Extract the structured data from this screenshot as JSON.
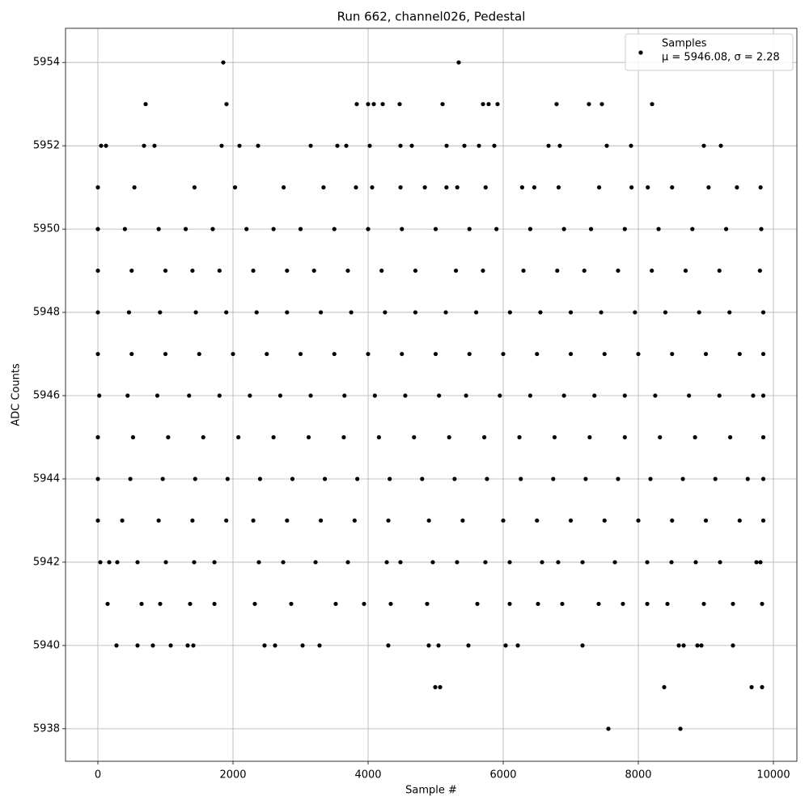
{
  "chart_data": {
    "type": "scatter",
    "title": "Run 662, channel026, Pedestal",
    "xlabel": "Sample #",
    "ylabel": "ADC Counts",
    "xlim": [
      -479,
      10347
    ],
    "ylim": [
      5937.22,
      5954.82
    ],
    "xticks": [
      0,
      2000,
      4000,
      6000,
      8000,
      10000
    ],
    "yticks": [
      5938,
      5940,
      5942,
      5944,
      5946,
      5948,
      5950,
      5952,
      5954
    ],
    "grid": true,
    "legend_position": "upper right",
    "legend_stats": "μ = 5946.08, σ = 2.28",
    "series": [
      {
        "name": "Samples",
        "color": "#000000",
        "x": [
          1856,
          5341,
          707,
          1904,
          3832,
          4000,
          4084,
          4216,
          4467,
          5102,
          5701,
          5784,
          5916,
          6790,
          7269,
          7461,
          8204,
          48,
          120,
          683,
          838,
          1832,
          2096,
          2371,
          3150,
          3545,
          3677,
          4024,
          4479,
          4647,
          5162,
          5425,
          5641,
          5868,
          6671,
          6838,
          7533,
          7892,
          8970,
          9222,
          0,
          540,
          1430,
          2030,
          2750,
          3340,
          3820,
          4060,
          4480,
          4840,
          5160,
          5320,
          5740,
          6280,
          6460,
          6820,
          7420,
          7900,
          8140,
          8500,
          9040,
          9460,
          9810,
          0,
          400,
          900,
          1300,
          1700,
          2200,
          2600,
          3000,
          3500,
          4000,
          4500,
          5000,
          5500,
          5900,
          6400,
          6900,
          7300,
          7800,
          8300,
          8800,
          9300,
          9820,
          0,
          500,
          1000,
          1400,
          1800,
          2300,
          2800,
          3200,
          3700,
          4200,
          4700,
          5300,
          5700,
          6300,
          6800,
          7200,
          7700,
          8200,
          8700,
          9200,
          9800,
          0,
          460,
          920,
          1450,
          1900,
          2350,
          2800,
          3300,
          3750,
          4250,
          4700,
          5150,
          5600,
          6100,
          6550,
          7000,
          7450,
          7950,
          8400,
          8900,
          9350,
          9850,
          0,
          500,
          1000,
          1500,
          2000,
          2500,
          3000,
          3500,
          4000,
          4500,
          5000,
          5500,
          6000,
          6500,
          7000,
          7500,
          8000,
          8500,
          9000,
          9500,
          9850,
          20,
          440,
          880,
          1350,
          1800,
          2250,
          2700,
          3150,
          3650,
          4100,
          4550,
          5050,
          5450,
          5950,
          6400,
          6900,
          7350,
          7800,
          8250,
          8750,
          9200,
          9700,
          9850,
          0,
          520,
          1040,
          1560,
          2080,
          2600,
          3120,
          3640,
          4160,
          4680,
          5200,
          5720,
          6240,
          6760,
          7280,
          7800,
          8320,
          8840,
          9360,
          9850,
          0,
          480,
          960,
          1440,
          1920,
          2400,
          2880,
          3360,
          3840,
          4320,
          4800,
          5280,
          5760,
          6260,
          6740,
          7220,
          7700,
          8180,
          8660,
          9140,
          9620,
          9850,
          0,
          360,
          900,
          1400,
          1900,
          2300,
          2800,
          3300,
          3800,
          4300,
          4900,
          5400,
          6000,
          6500,
          7000,
          7500,
          8000,
          8500,
          9000,
          9500,
          9850,
          36,
          168,
          287,
          587,
          1006,
          1425,
          1725,
          2383,
          2743,
          3222,
          3701,
          4276,
          4479,
          4958,
          5317,
          5736,
          6096,
          6575,
          6814,
          7174,
          7653,
          8132,
          8491,
          8850,
          9210,
          9749,
          9808,
          144,
          647,
          922,
          1365,
          1725,
          2323,
          2862,
          3521,
          3940,
          4335,
          4874,
          5617,
          6096,
          6515,
          6874,
          7413,
          7772,
          8132,
          8431,
          8970,
          9401,
          9832,
          275,
          587,
          814,
          1078,
          1329,
          1413,
          2467,
          2623,
          3030,
          3281,
          4299,
          4898,
          5042,
          5485,
          6036,
          6216,
          7174,
          8599,
          8671,
          8874,
          8934,
          9401,
          4994,
          5066,
          8383,
          9677,
          9832,
          7557,
          8623
        ],
        "values": [
          5954,
          5954,
          5953,
          5953,
          5953,
          5953,
          5953,
          5953,
          5953,
          5953,
          5953,
          5953,
          5953,
          5953,
          5953,
          5953,
          5953,
          5952,
          5952,
          5952,
          5952,
          5952,
          5952,
          5952,
          5952,
          5952,
          5952,
          5952,
          5952,
          5952,
          5952,
          5952,
          5952,
          5952,
          5952,
          5952,
          5952,
          5952,
          5952,
          5952,
          5951,
          5951,
          5951,
          5951,
          5951,
          5951,
          5951,
          5951,
          5951,
          5951,
          5951,
          5951,
          5951,
          5951,
          5951,
          5951,
          5951,
          5951,
          5951,
          5951,
          5951,
          5951,
          5951,
          5950,
          5950,
          5950,
          5950,
          5950,
          5950,
          5950,
          5950,
          5950,
          5950,
          5950,
          5950,
          5950,
          5950,
          5950,
          5950,
          5950,
          5950,
          5950,
          5950,
          5950,
          5950,
          5949,
          5949,
          5949,
          5949,
          5949,
          5949,
          5949,
          5949,
          5949,
          5949,
          5949,
          5949,
          5949,
          5949,
          5949,
          5949,
          5949,
          5949,
          5949,
          5949,
          5949,
          5948,
          5948,
          5948,
          5948,
          5948,
          5948,
          5948,
          5948,
          5948,
          5948,
          5948,
          5948,
          5948,
          5948,
          5948,
          5948,
          5948,
          5948,
          5948,
          5948,
          5948,
          5948,
          5947,
          5947,
          5947,
          5947,
          5947,
          5947,
          5947,
          5947,
          5947,
          5947,
          5947,
          5947,
          5947,
          5947,
          5947,
          5947,
          5947,
          5947,
          5947,
          5947,
          5947,
          5946,
          5946,
          5946,
          5946,
          5946,
          5946,
          5946,
          5946,
          5946,
          5946,
          5946,
          5946,
          5946,
          5946,
          5946,
          5946,
          5946,
          5946,
          5946,
          5946,
          5946,
          5946,
          5946,
          5945,
          5945,
          5945,
          5945,
          5945,
          5945,
          5945,
          5945,
          5945,
          5945,
          5945,
          5945,
          5945,
          5945,
          5945,
          5945,
          5945,
          5945,
          5945,
          5945,
          5944,
          5944,
          5944,
          5944,
          5944,
          5944,
          5944,
          5944,
          5944,
          5944,
          5944,
          5944,
          5944,
          5944,
          5944,
          5944,
          5944,
          5944,
          5944,
          5944,
          5944,
          5944,
          5943,
          5943,
          5943,
          5943,
          5943,
          5943,
          5943,
          5943,
          5943,
          5943,
          5943,
          5943,
          5943,
          5943,
          5943,
          5943,
          5943,
          5943,
          5943,
          5943,
          5943,
          5942,
          5942,
          5942,
          5942,
          5942,
          5942,
          5942,
          5942,
          5942,
          5942,
          5942,
          5942,
          5942,
          5942,
          5942,
          5942,
          5942,
          5942,
          5942,
          5942,
          5942,
          5942,
          5942,
          5942,
          5942,
          5942,
          5942,
          5941,
          5941,
          5941,
          5941,
          5941,
          5941,
          5941,
          5941,
          5941,
          5941,
          5941,
          5941,
          5941,
          5941,
          5941,
          5941,
          5941,
          5941,
          5941,
          5941,
          5941,
          5941,
          5940,
          5940,
          5940,
          5940,
          5940,
          5940,
          5940,
          5940,
          5940,
          5940,
          5940,
          5940,
          5940,
          5940,
          5940,
          5940,
          5940,
          5940,
          5940,
          5940,
          5940,
          5940,
          5939,
          5939,
          5939,
          5939,
          5939,
          5938,
          5938
        ]
      }
    ]
  }
}
